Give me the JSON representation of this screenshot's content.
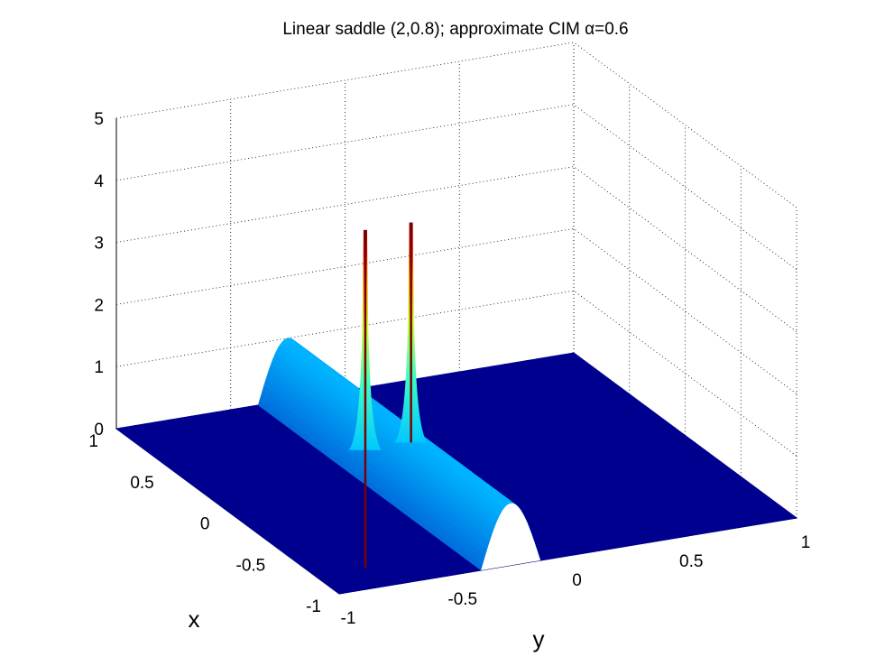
{
  "chart_data": {
    "type": "surface",
    "title": "Linear saddle (2,0.8); approximate CIM α=0.6",
    "xlabel": "x",
    "ylabel": "y",
    "zlabel": "",
    "xlim": [
      -1,
      1
    ],
    "ylim": [
      -1,
      1
    ],
    "zlim": [
      0,
      5
    ],
    "x_ticks": [
      "-1",
      "-0.5",
      "0",
      "0.5",
      "1"
    ],
    "y_ticks": [
      "-1",
      "-0.5",
      "0",
      "0.5",
      "1"
    ],
    "z_ticks": [
      "0",
      "1",
      "2",
      "3",
      "4",
      "5"
    ],
    "grid": true,
    "colormap": "jet",
    "surface": {
      "background_level": 0,
      "ridge": {
        "axis": "y",
        "center_y": -0.25,
        "half_width": 0.13,
        "height": 1.0
      },
      "peaks": [
        {
          "x": 0.1,
          "y": -0.35,
          "z": 4.0
        },
        {
          "x": 0.1,
          "y": -0.15,
          "z": 4.0
        }
      ]
    },
    "colors": {
      "low": "#00008f",
      "mid": "#00a0ff",
      "high": "#800000"
    }
  }
}
